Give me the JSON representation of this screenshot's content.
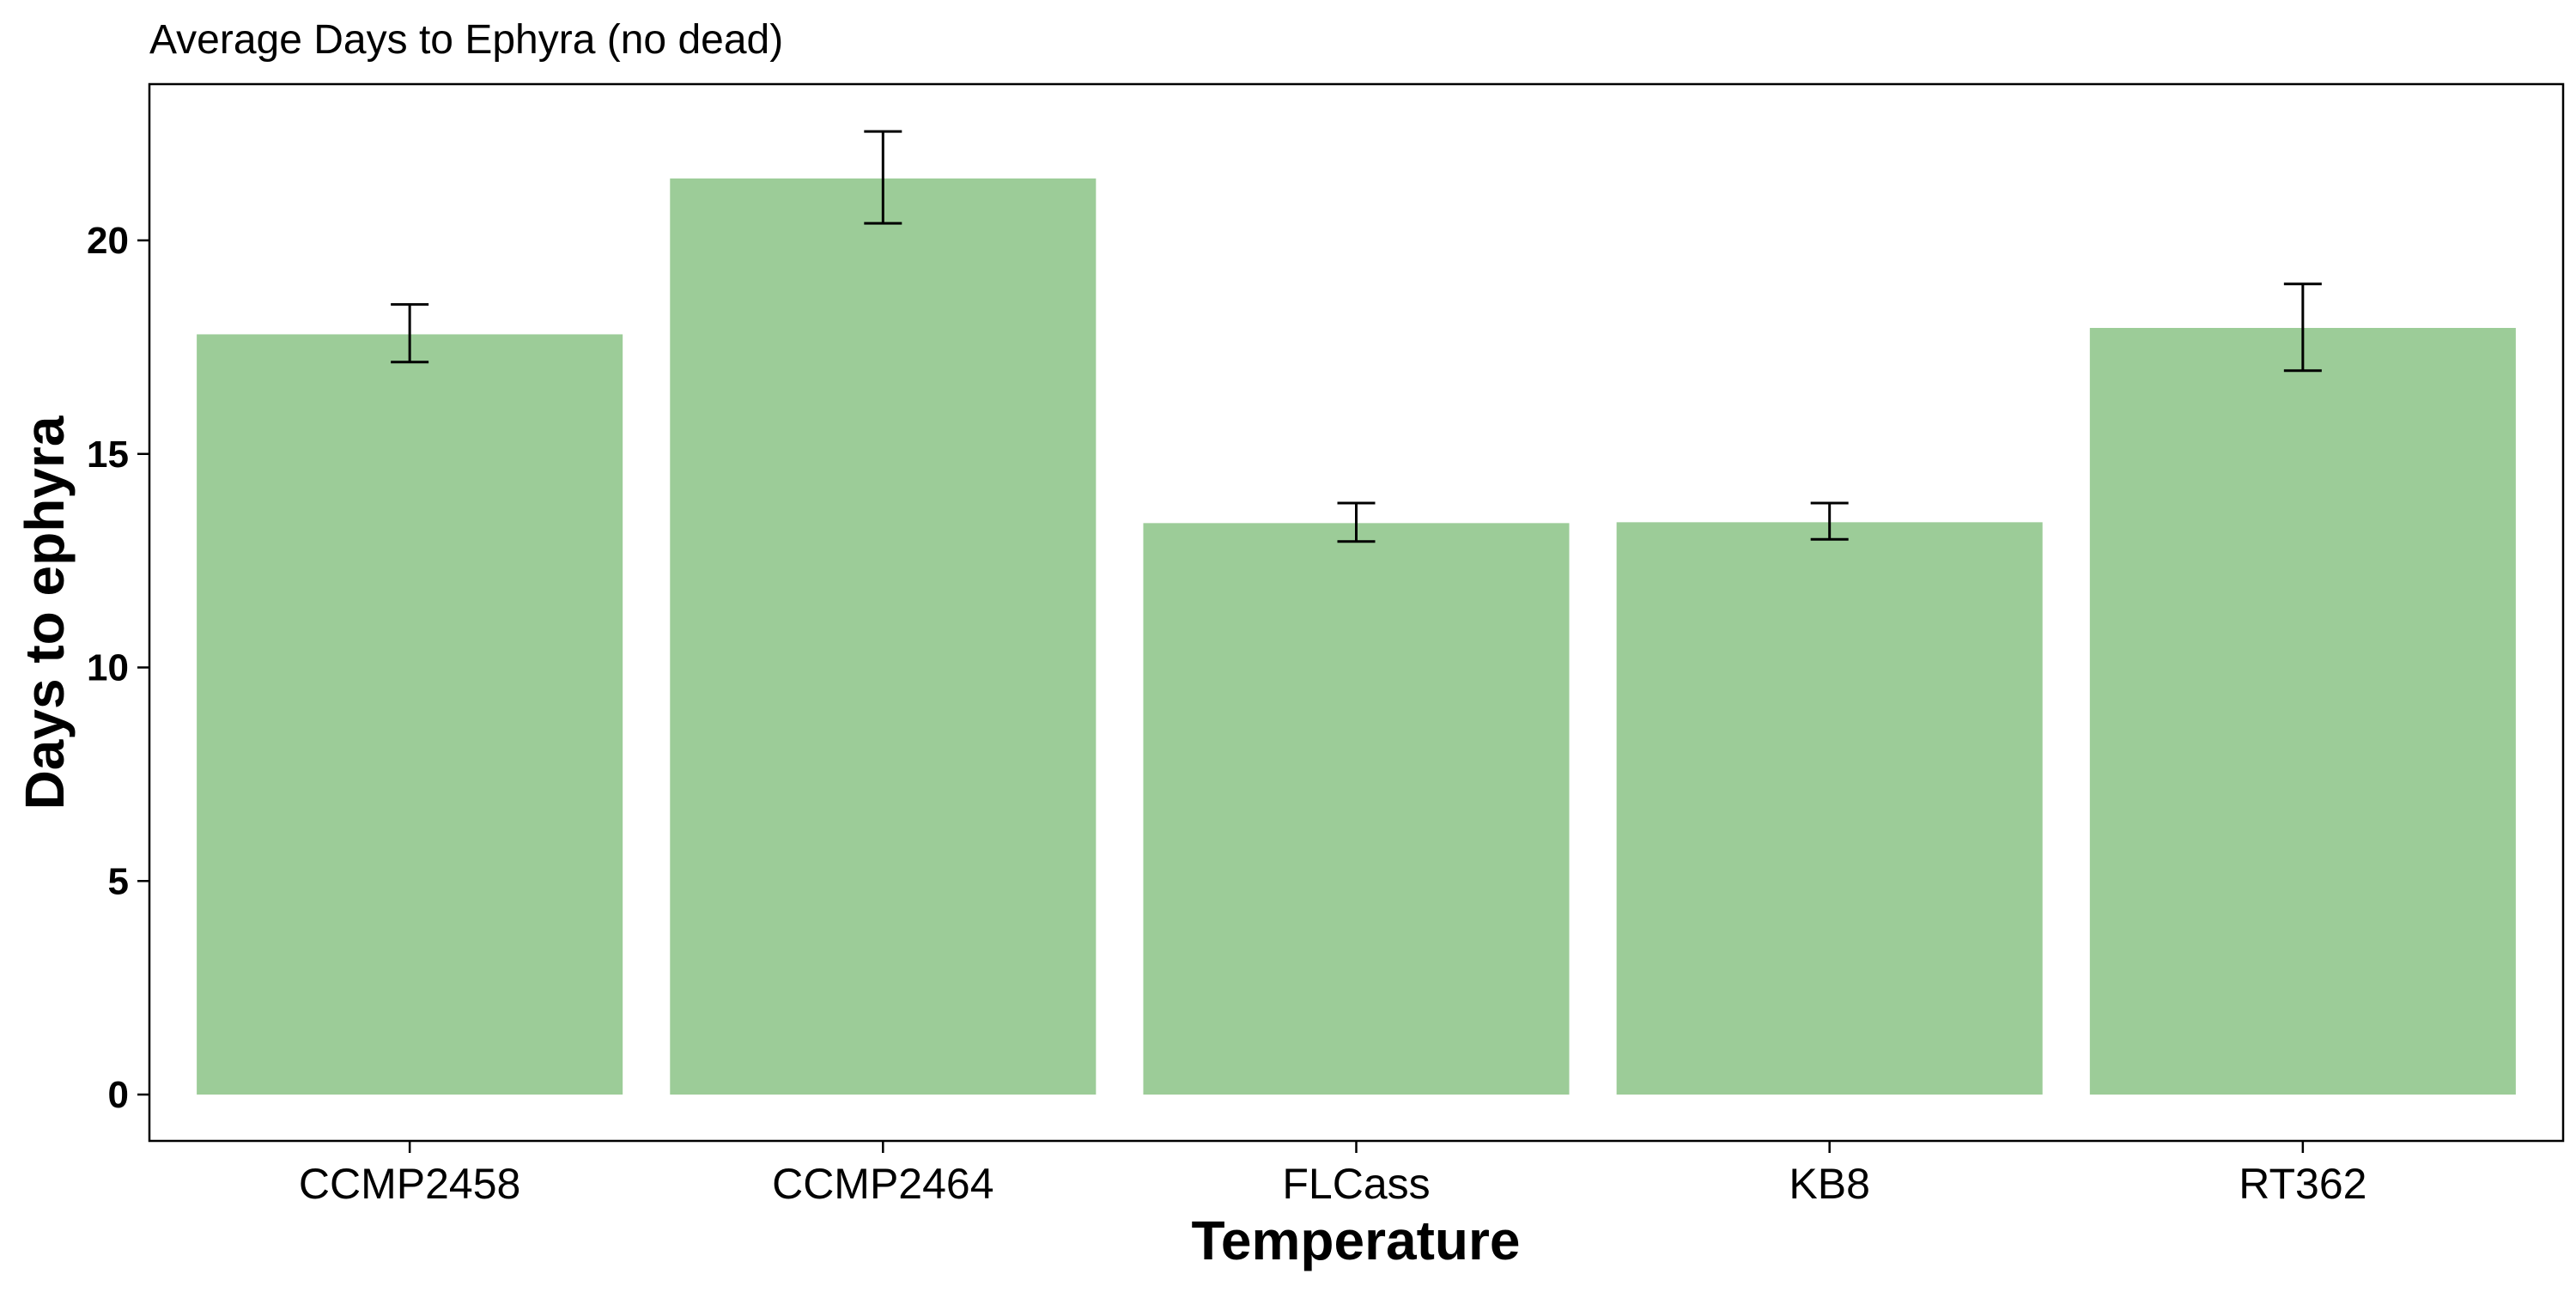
{
  "chart_data": {
    "type": "bar",
    "title": "Average Days to Ephyra (no dead)",
    "xlabel": "Temperature",
    "ylabel": "Days to ephyra",
    "categories": [
      "CCMP2458",
      "CCMP2464",
      "FLCass",
      "KB8",
      "RT362"
    ],
    "values": [
      17.8,
      21.45,
      13.38,
      13.4,
      17.95
    ],
    "error_lower": [
      17.15,
      20.4,
      12.95,
      13.0,
      16.95
    ],
    "error_upper": [
      18.5,
      22.55,
      13.85,
      13.85,
      18.98
    ],
    "ylim": [
      0,
      23.5
    ],
    "yticks": [
      0,
      5,
      10,
      15,
      20
    ],
    "bar_color": "#9ccc98",
    "error_bar_color": "#000000",
    "grid": false,
    "legend": "none"
  }
}
